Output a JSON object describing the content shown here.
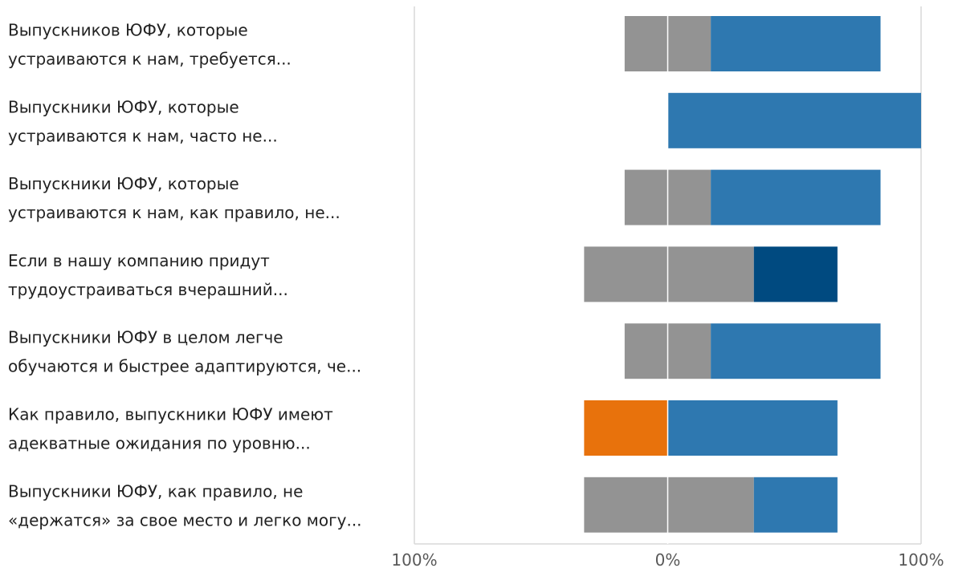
{
  "chart_data": {
    "type": "bar",
    "orientation": "horizontal",
    "stacked": "diverging",
    "categories": [
      [
        "Выпускников ЮФУ, которые",
        "устраиваются к нам, требуется..."
      ],
      [
        "Выпускники ЮФУ, которые",
        "устраиваются к нам, часто не..."
      ],
      [
        "Выпускники ЮФУ, которые",
        "устраиваются к нам, как правило, не..."
      ],
      [
        "Если в нашу компанию придут",
        "трудоустраиваться вчерашний..."
      ],
      [
        "Выпускники ЮФУ в целом легче",
        "обучаются и быстрее адаптируются, че..."
      ],
      [
        "Как правило, выпускники ЮФУ имеют",
        "адекватные ожидания по уровню..."
      ],
      [
        "Выпускники ЮФУ, как правило, не",
        "«держатся» за свое место и легко могу..."
      ]
    ],
    "segments": [
      [
        {
          "from": -17,
          "to": 17,
          "color": "#939393"
        },
        {
          "from": 17,
          "to": 84,
          "color": "#2e78b0"
        }
      ],
      [
        {
          "from": 0,
          "to": 100,
          "color": "#2e78b0"
        }
      ],
      [
        {
          "from": -17,
          "to": 17,
          "color": "#939393"
        },
        {
          "from": 17,
          "to": 84,
          "color": "#2e78b0"
        }
      ],
      [
        {
          "from": -33,
          "to": 34,
          "color": "#939393"
        },
        {
          "from": 34,
          "to": 67,
          "color": "#004a80"
        }
      ],
      [
        {
          "from": -17,
          "to": 17,
          "color": "#939393"
        },
        {
          "from": 17,
          "to": 84,
          "color": "#2e78b0"
        }
      ],
      [
        {
          "from": -33,
          "to": 0,
          "color": "#e8720c"
        },
        {
          "from": 0,
          "to": 67,
          "color": "#2e78b0"
        }
      ],
      [
        {
          "from": -33,
          "to": 34,
          "color": "#939393"
        },
        {
          "from": 34,
          "to": 67,
          "color": "#2e78b0"
        }
      ]
    ],
    "xlim": [
      -100,
      100
    ],
    "xticks": [
      {
        "value": -100,
        "label": "100%"
      },
      {
        "value": 0,
        "label": "0%"
      },
      {
        "value": 100,
        "label": "100%"
      }
    ],
    "gridlines": true,
    "legend": "none",
    "colors": {
      "neutral": "#939393",
      "agree": "#2e78b0",
      "strongly_agree": "#004a80",
      "disagree": "#e8720c",
      "grid": "#d9d9d9",
      "zero_line": "#ffffff"
    }
  }
}
